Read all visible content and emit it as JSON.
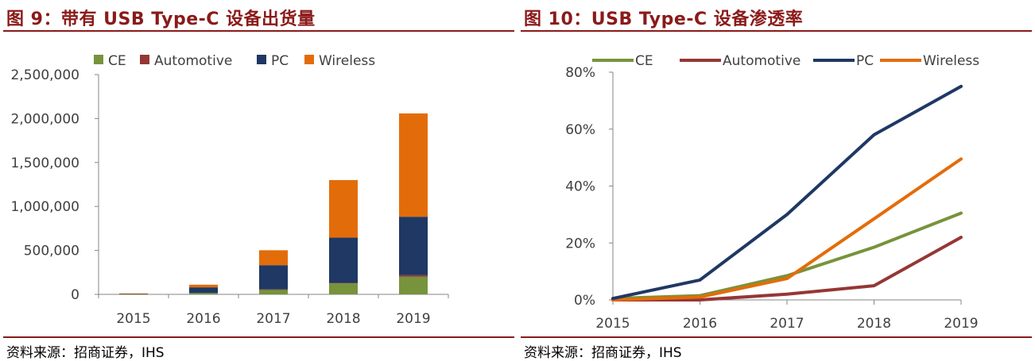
{
  "left": {
    "title": "图 9：带有 USB Type-C 设备出货量",
    "source": "资料来源：招商证券，IHS"
  },
  "right": {
    "title": "图 10：USB Type-C 设备渗透率",
    "source": "资料来源：招商证券，IHS"
  },
  "colors": {
    "CE": "#77933c",
    "Automotive": "#953735",
    "PC": "#1f3864",
    "Wireless": "#e36c0a",
    "frame": "#8b1a1a"
  },
  "chart_data": [
    {
      "type": "bar",
      "stacked": true,
      "categories": [
        "2015",
        "2016",
        "2017",
        "2018",
        "2019"
      ],
      "series": [
        {
          "name": "CE",
          "values": [
            2000,
            15000,
            55000,
            125000,
            200000
          ]
        },
        {
          "name": "Automotive",
          "values": [
            0,
            0,
            2000,
            5000,
            18000
          ]
        },
        {
          "name": "PC",
          "values": [
            3000,
            65000,
            275000,
            515000,
            665000
          ]
        },
        {
          "name": "Wireless",
          "values": [
            5000,
            30000,
            170000,
            655000,
            1175000
          ]
        }
      ],
      "ylim": [
        0,
        2500000
      ],
      "yticks": [
        0,
        500000,
        1000000,
        1500000,
        2000000,
        2500000
      ],
      "ytick_labels": [
        "0",
        "500,000",
        "1,000,000",
        "1,500,000",
        "2,000,000",
        "2,500,000"
      ],
      "legend_position": "top",
      "grid": false
    },
    {
      "type": "line",
      "categories": [
        "2015",
        "2016",
        "2017",
        "2018",
        "2019"
      ],
      "series": [
        {
          "name": "CE",
          "values": [
            0.5,
            1.5,
            8.5,
            18.5,
            30.5
          ]
        },
        {
          "name": "Automotive",
          "values": [
            0,
            0,
            2,
            5,
            22
          ]
        },
        {
          "name": "PC",
          "values": [
            0.5,
            7,
            30,
            58,
            75
          ]
        },
        {
          "name": "Wireless",
          "values": [
            0,
            1,
            7.5,
            28.5,
            49.5
          ]
        }
      ],
      "ylim": [
        0,
        80
      ],
      "yticks": [
        0,
        20,
        40,
        60,
        80
      ],
      "ytick_labels": [
        "0%",
        "20%",
        "40%",
        "60%",
        "80%"
      ],
      "legend_position": "top",
      "grid": false
    }
  ]
}
